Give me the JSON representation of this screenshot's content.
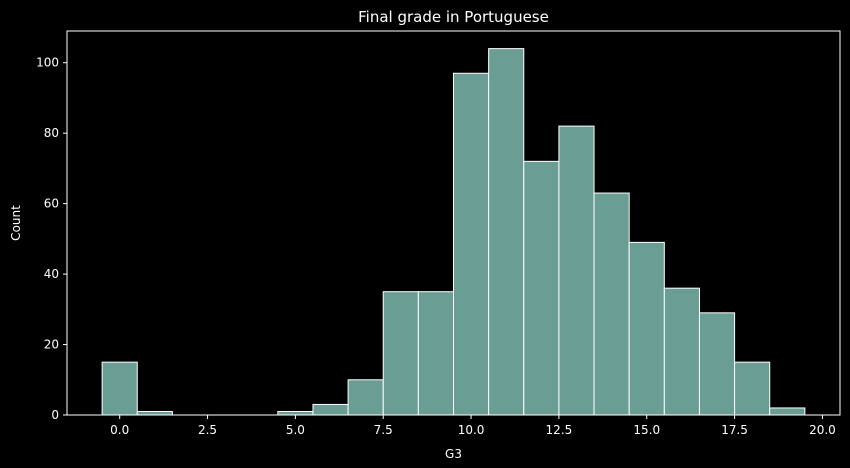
{
  "chart_data": {
    "type": "bar",
    "title": "Final grade in Portuguese",
    "xlabel": "G3",
    "ylabel": "Count",
    "xlim": [
      -1.5,
      20.5
    ],
    "ylim": [
      0,
      109
    ],
    "xticks": [
      0.0,
      2.5,
      5.0,
      7.5,
      10.0,
      12.5,
      15.0,
      17.5,
      20.0
    ],
    "xtick_labels": [
      "0.0",
      "2.5",
      "5.0",
      "7.5",
      "10.0",
      "12.5",
      "15.0",
      "17.5",
      "20.0"
    ],
    "yticks": [
      0,
      20,
      40,
      60,
      80,
      100
    ],
    "ytick_labels": [
      "0",
      "20",
      "40",
      "60",
      "80",
      "100"
    ],
    "bin_edges": [
      -0.5,
      0.5,
      1.5,
      2.5,
      3.5,
      4.5,
      5.5,
      6.5,
      7.5,
      8.5,
      9.5,
      10.5,
      11.5,
      12.5,
      13.5,
      14.5,
      15.5,
      16.5,
      17.5,
      18.5,
      19.5
    ],
    "values": [
      15,
      1,
      0,
      0,
      0,
      1,
      3,
      10,
      35,
      35,
      97,
      104,
      72,
      82,
      63,
      49,
      36,
      29,
      15,
      2
    ],
    "grid": false,
    "colors": {
      "bar_fill": "#6a9e94",
      "bar_edge": "#ffffff",
      "background": "#000000",
      "axes": "#ffffff"
    }
  }
}
